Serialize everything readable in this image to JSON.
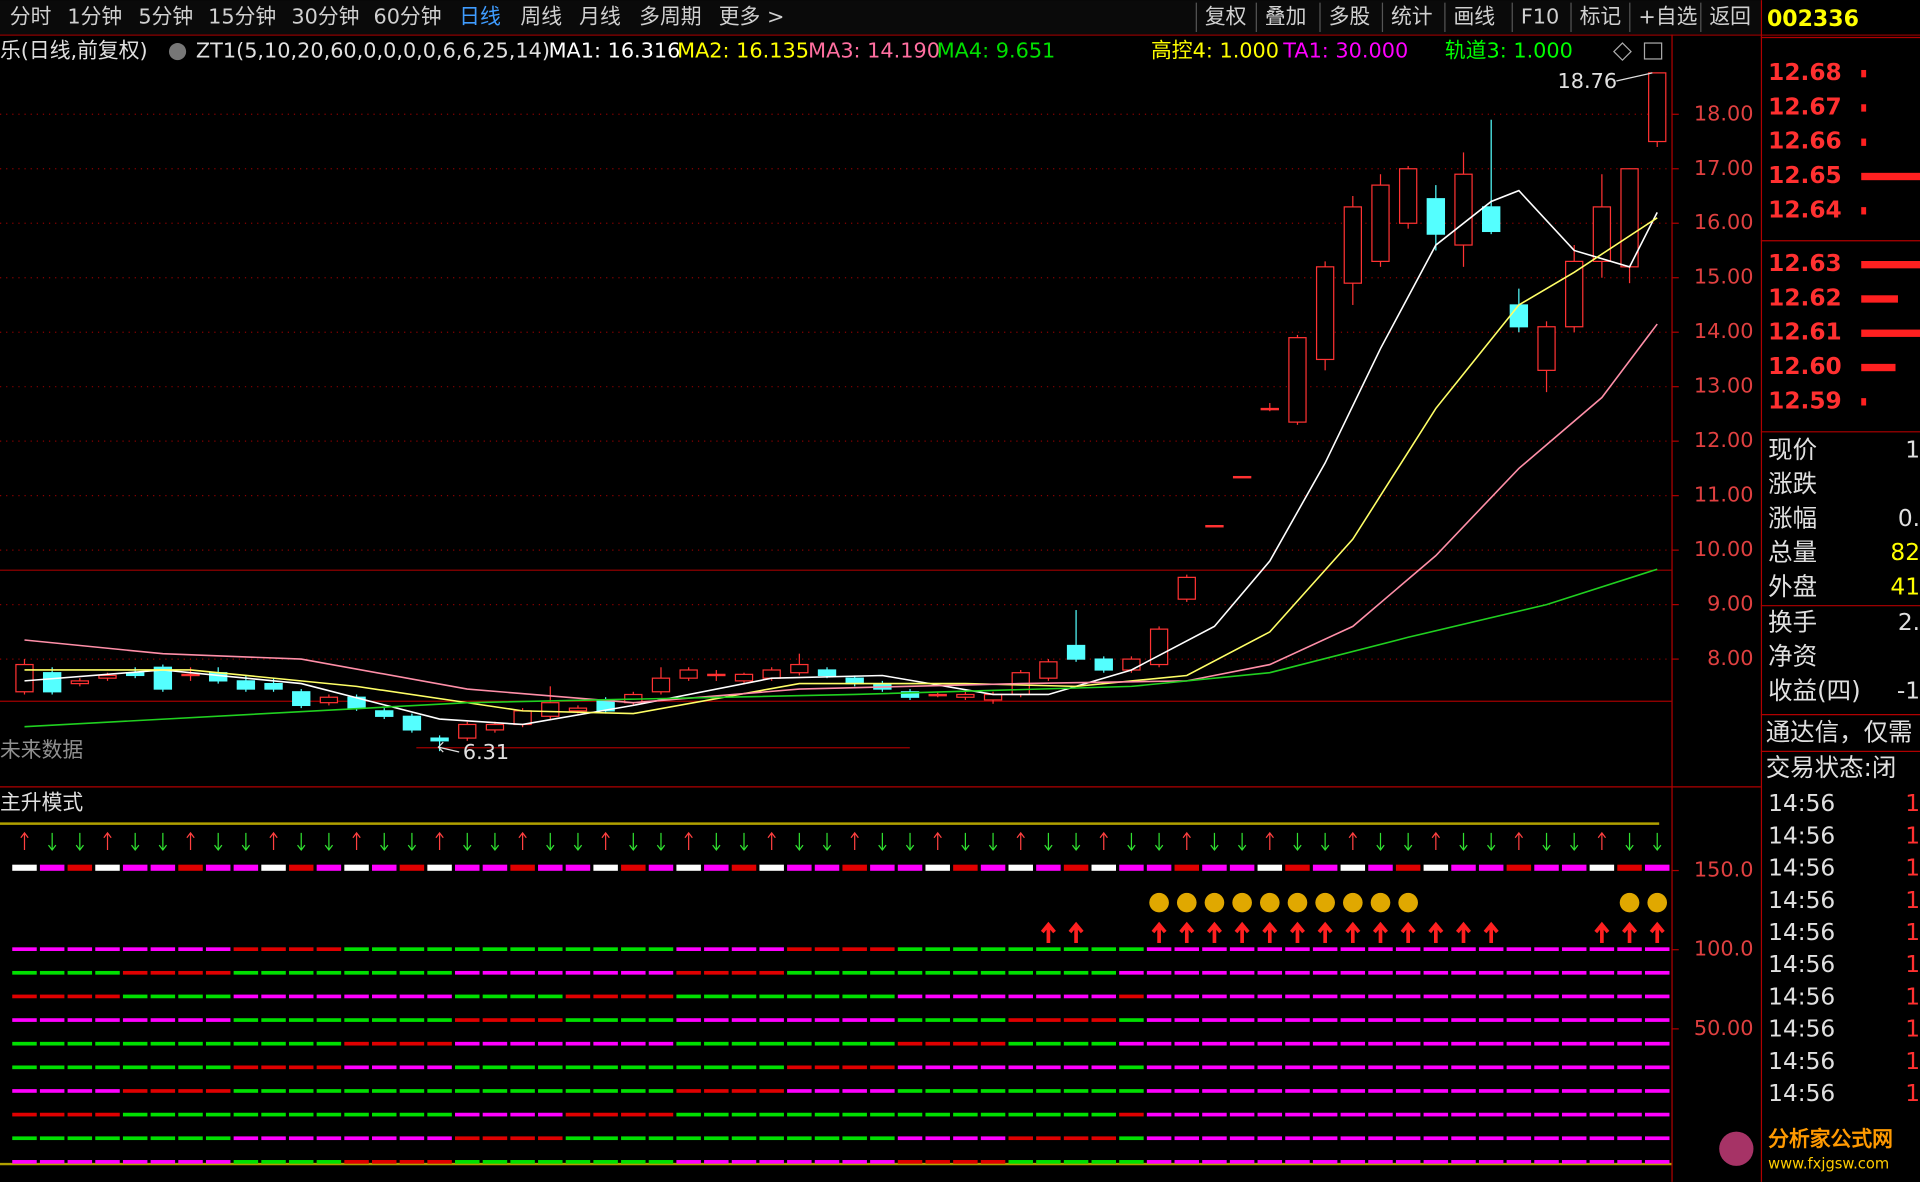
{
  "toolbar": {
    "periods": [
      "分时",
      "1分钟",
      "5分钟",
      "15分钟",
      "30分钟",
      "60分钟",
      "日线",
      "周线",
      "月线",
      "多周期",
      "更多 >"
    ],
    "active_index": 6,
    "buttons": [
      "复权",
      "叠加",
      "多股",
      "统计",
      "画线",
      "F10",
      "标记",
      "+自选",
      "返回"
    ]
  },
  "stock_code": "002336",
  "info": {
    "name": "乐(日线,前复权)",
    "formula": "ZT1(5,10,20,60,0,0,0,0,6,6,25,14)",
    "indicators": [
      {
        "label": "MA1: 16.316",
        "color": "#ffffff"
      },
      {
        "label": "MA2: 16.135",
        "color": "#ffff00"
      },
      {
        "label": "MA3: 14.190",
        "color": "#ff6fa0"
      },
      {
        "label": "MA4: 9.651",
        "color": "#00e000"
      },
      {
        "label": "高控4: 1.000",
        "color": "#ffff00"
      },
      {
        "label": "TA1: 30.000",
        "color": "#ff00ff"
      },
      {
        "label": "轨道3: 1.000",
        "color": "#00ff00"
      }
    ]
  },
  "chart_data": {
    "type": "candlestick",
    "up_color": "#ff3232",
    "down_color": "#54ffff",
    "open": [
      7.4,
      7.75,
      7.55,
      7.65,
      7.75,
      7.85,
      7.7,
      7.75,
      7.6,
      7.55,
      7.4,
      7.2,
      7.3,
      7.05,
      6.95,
      6.55,
      6.55,
      6.7,
      6.8,
      6.95,
      7.05,
      7.25,
      7.2,
      7.4,
      7.65,
      7.7,
      7.6,
      7.65,
      7.75,
      7.8,
      7.65,
      7.55,
      7.4,
      7.35,
      7.3,
      7.25,
      7.35,
      7.65,
      8.25,
      8.0,
      7.8,
      7.9,
      9.1,
      10.45,
      11.35,
      12.6,
      12.35,
      13.5,
      14.9,
      15.3,
      16.0,
      16.45,
      15.6,
      16.3,
      14.5,
      13.3,
      14.1,
      15.3,
      15.2,
      17.5
    ],
    "high": [
      8.0,
      7.85,
      7.65,
      7.75,
      7.85,
      7.9,
      7.85,
      7.85,
      7.7,
      7.65,
      7.45,
      7.35,
      7.35,
      7.1,
      7.0,
      6.6,
      6.85,
      6.85,
      7.1,
      7.5,
      7.15,
      7.3,
      7.4,
      7.85,
      7.85,
      7.8,
      7.75,
      7.85,
      8.1,
      7.85,
      7.7,
      7.6,
      7.45,
      7.4,
      7.4,
      7.4,
      7.8,
      8.0,
      8.9,
      8.05,
      8.05,
      8.6,
      9.55,
      10.45,
      11.35,
      12.7,
      13.95,
      15.3,
      16.5,
      16.9,
      17.05,
      16.7,
      17.3,
      17.9,
      14.8,
      14.2,
      15.6,
      16.9,
      17.0,
      18.76
    ],
    "low": [
      7.35,
      7.35,
      7.5,
      7.6,
      7.65,
      7.4,
      7.6,
      7.55,
      7.4,
      7.4,
      7.1,
      7.15,
      7.05,
      6.9,
      6.65,
      6.31,
      6.5,
      6.65,
      6.75,
      6.9,
      7.0,
      7.0,
      7.15,
      7.35,
      7.6,
      7.6,
      7.55,
      7.6,
      7.7,
      7.65,
      7.5,
      7.4,
      7.25,
      7.3,
      7.25,
      7.18,
      7.3,
      7.6,
      7.95,
      7.75,
      7.75,
      7.85,
      9.05,
      10.45,
      11.35,
      12.55,
      12.3,
      13.3,
      14.5,
      15.2,
      15.9,
      15.5,
      15.2,
      15.8,
      14.0,
      12.9,
      14.0,
      15.0,
      14.9,
      17.4
    ],
    "close": [
      7.9,
      7.4,
      7.6,
      7.7,
      7.7,
      7.45,
      7.72,
      7.6,
      7.45,
      7.45,
      7.15,
      7.3,
      7.1,
      6.95,
      6.7,
      6.5,
      6.8,
      6.8,
      7.05,
      7.2,
      7.1,
      7.05,
      7.35,
      7.65,
      7.8,
      7.72,
      7.72,
      7.8,
      7.9,
      7.7,
      7.55,
      7.45,
      7.3,
      7.35,
      7.35,
      7.35,
      7.75,
      7.95,
      8.0,
      7.8,
      8.0,
      8.55,
      9.5,
      10.45,
      11.35,
      12.6,
      13.9,
      15.2,
      16.3,
      16.7,
      17.0,
      15.8,
      16.9,
      15.85,
      14.1,
      14.1,
      15.3,
      16.3,
      17.0,
      18.76
    ],
    "lines": [
      {
        "color": "#ffffff",
        "x": [
          0,
          5,
          10,
          15,
          18,
          22,
          27,
          31,
          35,
          37,
          40,
          43,
          45,
          47,
          49,
          51,
          53,
          54,
          56,
          58,
          59
        ],
        "values": [
          7.6,
          7.8,
          7.55,
          6.9,
          6.8,
          7.15,
          7.65,
          7.7,
          7.35,
          7.35,
          7.8,
          8.6,
          9.8,
          11.6,
          13.7,
          15.6,
          16.4,
          16.6,
          15.5,
          15.2,
          16.2
        ]
      },
      {
        "color": "#ffff66",
        "x": [
          0,
          6,
          12,
          18,
          22,
          28,
          34,
          38,
          42,
          45,
          48,
          51,
          54,
          56,
          59
        ],
        "values": [
          7.8,
          7.8,
          7.5,
          7.05,
          7.0,
          7.55,
          7.55,
          7.5,
          7.7,
          8.5,
          10.2,
          12.6,
          14.5,
          15.1,
          16.1
        ]
      },
      {
        "color": "#ff8fa8",
        "x": [
          0,
          5,
          10,
          16,
          22,
          28,
          36,
          42,
          45,
          48,
          51,
          54,
          57,
          59
        ],
        "values": [
          8.35,
          8.1,
          8.0,
          7.45,
          7.2,
          7.45,
          7.55,
          7.6,
          7.9,
          8.6,
          9.9,
          11.5,
          12.8,
          14.15
        ]
      },
      {
        "color": "#20d020",
        "x": [
          0,
          16,
          30,
          40,
          45,
          50,
          55,
          59
        ],
        "values": [
          6.76,
          7.2,
          7.35,
          7.5,
          7.75,
          8.4,
          9.0,
          9.65
        ]
      }
    ],
    "ylim": [
      5.71,
      19.42
    ],
    "yticks": [
      {
        "value": 8,
        "label": "8.00"
      },
      {
        "value": 9,
        "label": "9.00"
      },
      {
        "value": 10,
        "label": "10.00"
      },
      {
        "value": 11,
        "label": "11.00"
      },
      {
        "value": 12,
        "label": "12.00"
      },
      {
        "value": 13,
        "label": "13.00"
      },
      {
        "value": 14,
        "label": "14.00"
      },
      {
        "value": 15,
        "label": "15.00"
      },
      {
        "value": 16,
        "label": "16.00"
      },
      {
        "value": 17,
        "label": "17.00"
      },
      {
        "value": 18,
        "label": "18.00"
      }
    ],
    "grid": true,
    "annotations": {
      "high": "18.76",
      "low": "6.31",
      "note": "未来数据"
    }
  },
  "indicator_panel": {
    "title": "主升模式",
    "ylim": [
      -35,
      180
    ],
    "yticks": [
      {
        "value": 150,
        "label": "150.0"
      },
      {
        "value": 100,
        "label": "100.0"
      },
      {
        "value": 50,
        "label": "50.00"
      }
    ]
  },
  "order_book": {
    "prices": [
      "12.68",
      "12.67",
      "12.66",
      "12.65",
      "12.64",
      "12.63",
      "12.62",
      "12.61",
      "12.60",
      "12.59"
    ],
    "depth": [
      4,
      4,
      4,
      48,
      4,
      48,
      30,
      48,
      28,
      4
    ]
  },
  "quote": [
    {
      "label": "现价",
      "value": "1"
    },
    {
      "label": "涨跌",
      "value": ""
    },
    {
      "label": "涨幅",
      "value": "0."
    },
    {
      "label": "总量",
      "value": "82"
    },
    {
      "label": "外盘",
      "value": "41"
    },
    {
      "label": "换手",
      "value": "2."
    },
    {
      "label": "净资",
      "value": ""
    },
    {
      "label": "收益(四)",
      "value": "-1"
    }
  ],
  "notice": "通达信，仅需",
  "status": "交易状态:闭",
  "ticks": [
    {
      "time": "14:56",
      "value": "1"
    },
    {
      "time": "14:56",
      "value": "1"
    },
    {
      "time": "14:56",
      "value": "1"
    },
    {
      "time": "14:56",
      "value": "1"
    },
    {
      "time": "14:56",
      "value": "1"
    },
    {
      "time": "14:56",
      "value": "1"
    },
    {
      "time": "14:56",
      "value": "1"
    },
    {
      "time": "14:56",
      "value": "1"
    },
    {
      "time": "14:56",
      "value": "1"
    },
    {
      "time": "14:56",
      "value": "1"
    }
  ],
  "watermark": {
    "name": "分析家公式网",
    "url": "www.fxjgsw.com"
  }
}
